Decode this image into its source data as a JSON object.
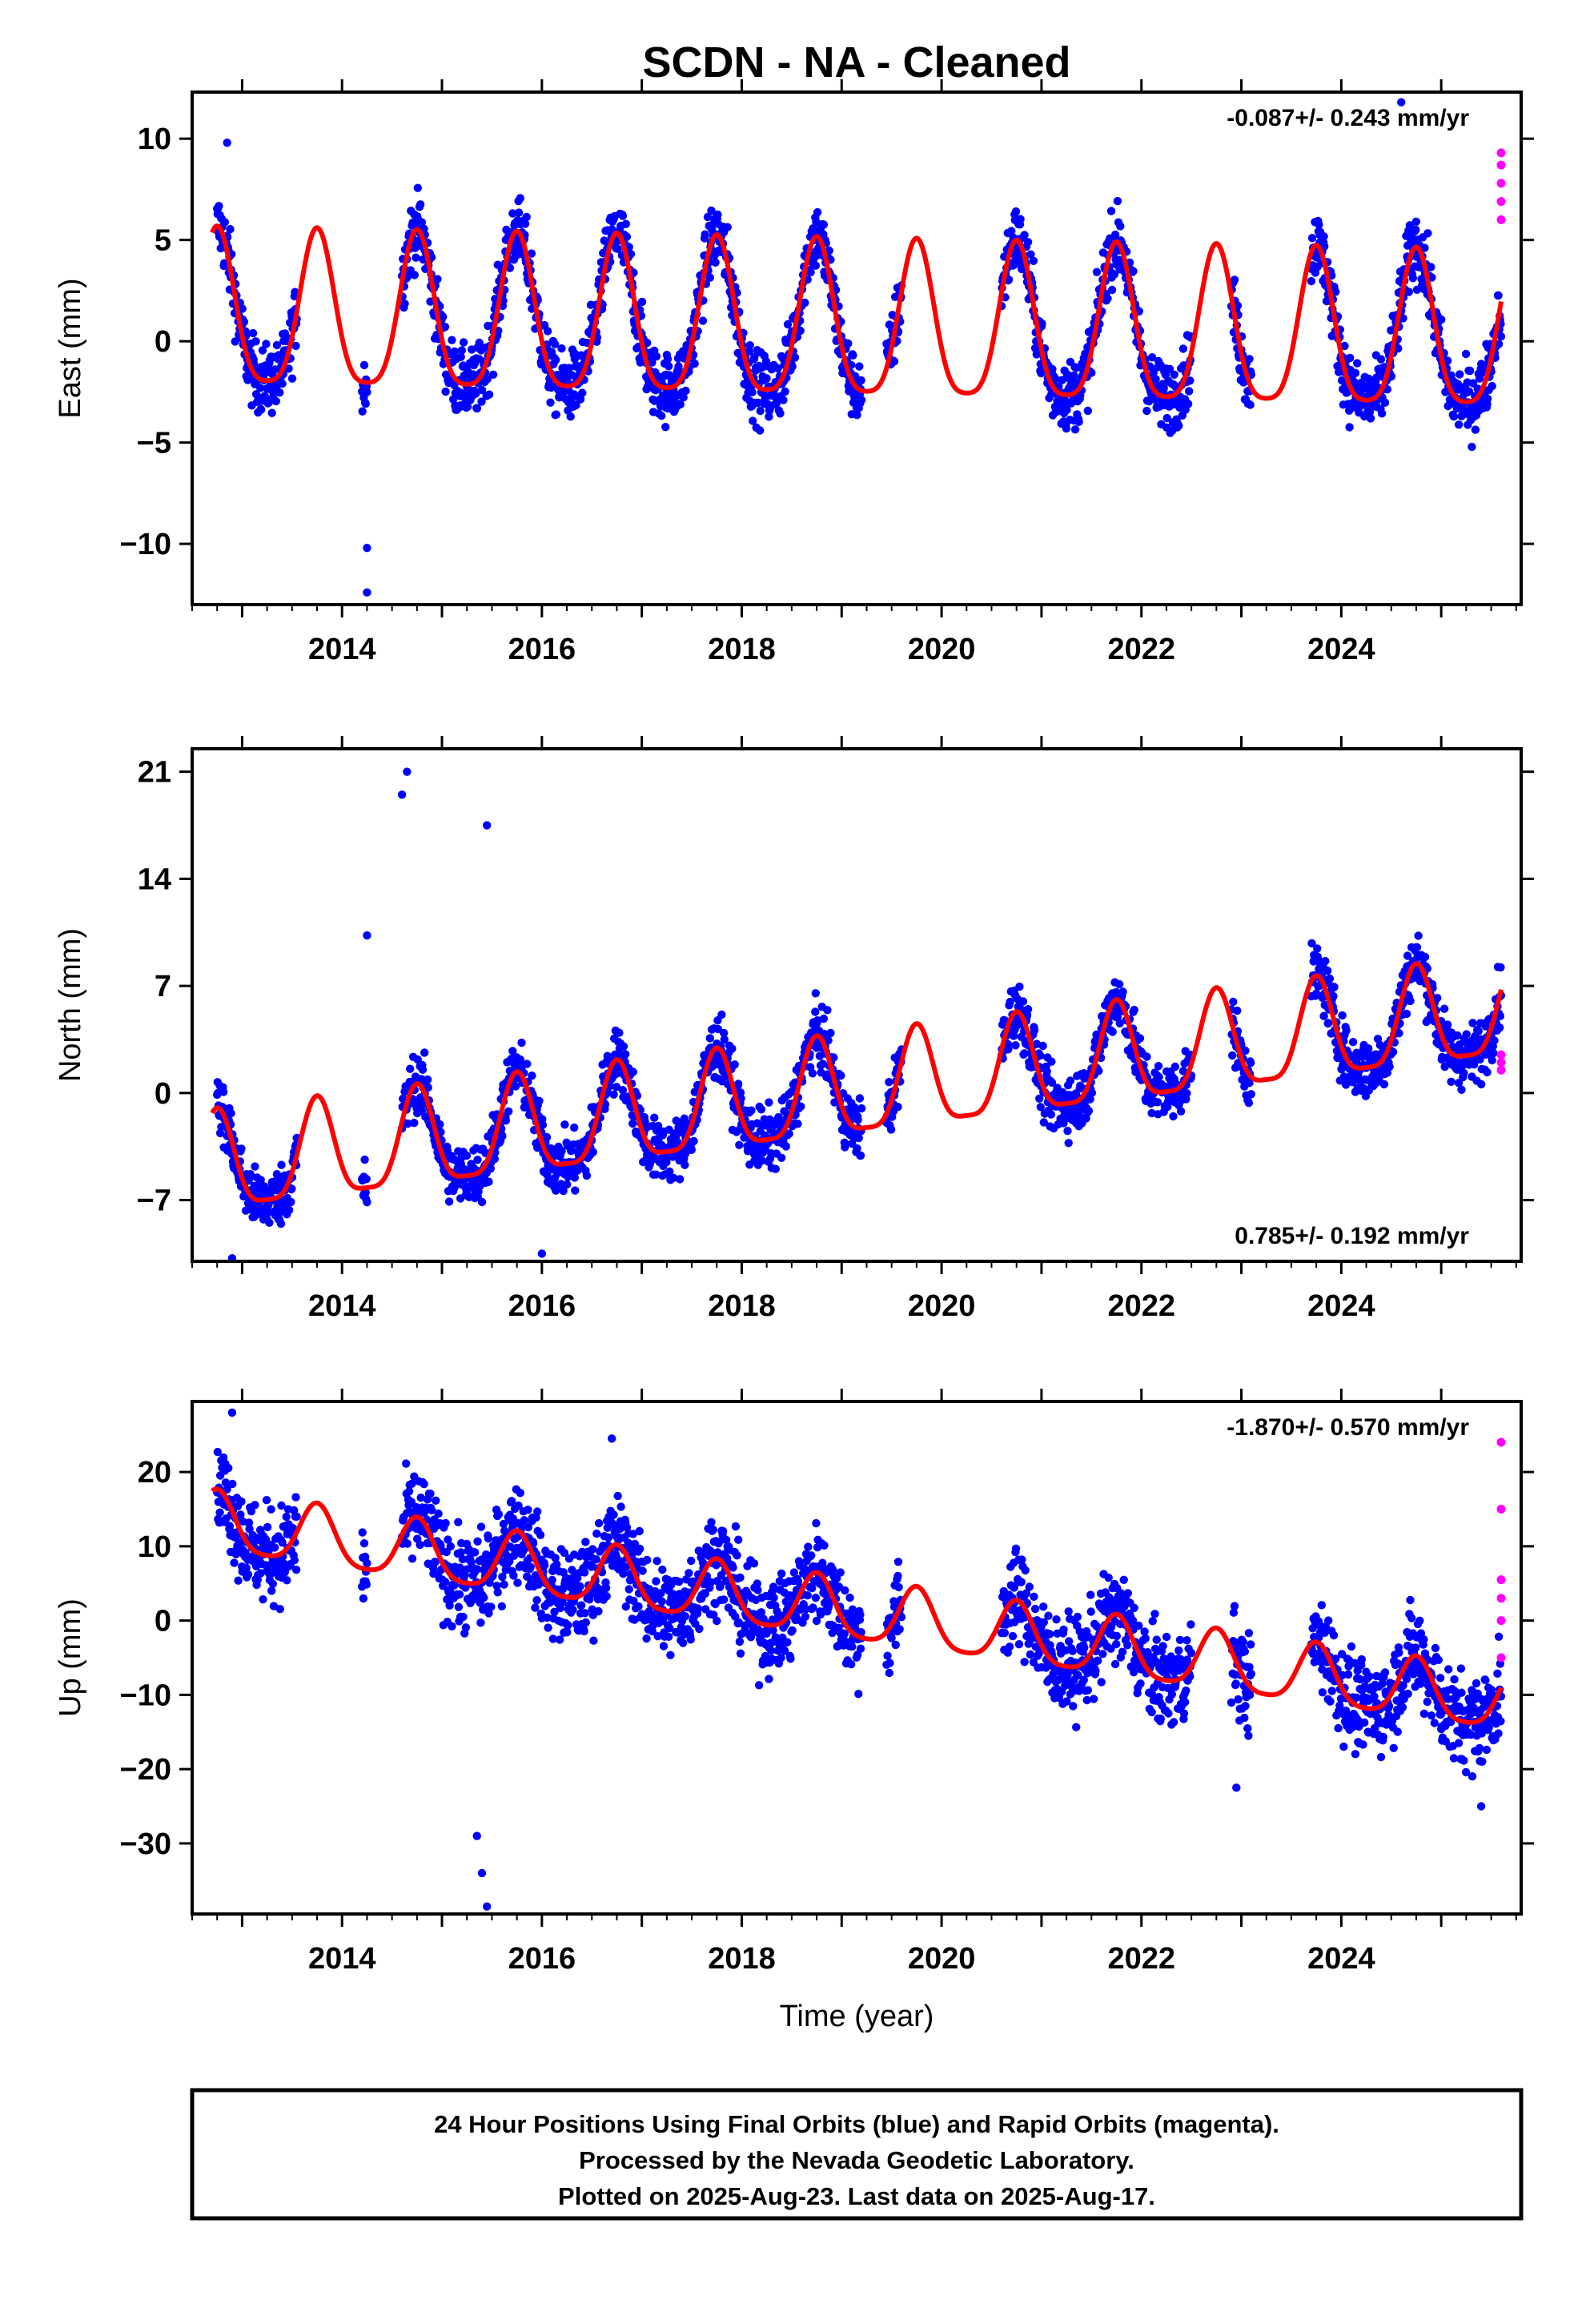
{
  "title": "SCDN  - NA - Cleaned",
  "chart_data": [
    {
      "type": "scatter",
      "ylabel": "East (mm)",
      "xlabel": "",
      "xlim": [
        2012.5,
        2025.8
      ],
      "ylim": [
        -13,
        12.3
      ],
      "xticks": [
        2014,
        2016,
        2018,
        2020,
        2022,
        2024
      ],
      "yticks": [
        -10,
        -5,
        0,
        5,
        10
      ],
      "rate_label": "-0.087+/- 0.243 mm/yr",
      "rate_position": "top-right",
      "series": [
        {
          "kind": "final-orbits",
          "color": "#0000ff",
          "segments": [
            [
              2012.75,
              2013.55
            ],
            [
              2014.2,
              2014.25
            ],
            [
              2014.6,
              2019.2
            ],
            [
              2019.45,
              2019.6
            ],
            [
              2020.6,
              2022.5
            ],
            [
              2022.9,
              2023.1
            ],
            [
              2023.7,
              2025.6
            ]
          ],
          "amplitude": 3.8,
          "offset": 0.9,
          "noise": 1.2,
          "outliers": [
            [
              2014.25,
              -12.4
            ],
            [
              2014.25,
              -10.2
            ],
            [
              2024.6,
              11.8
            ],
            [
              2012.85,
              9.8
            ]
          ]
        },
        {
          "kind": "rapid-orbits",
          "color": "#ff00ff",
          "points": [
            [
              2025.6,
              9.3
            ],
            [
              2025.6,
              8.7
            ],
            [
              2025.6,
              7.8
            ],
            [
              2025.6,
              6.9
            ],
            [
              2025.6,
              6.0
            ]
          ]
        },
        {
          "kind": "model-fit",
          "color": "#ff0000",
          "rate": -0.087,
          "amplitude": 3.8,
          "offset": 1.1,
          "start": 2012.7,
          "end": 2025.6
        }
      ]
    },
    {
      "type": "scatter",
      "ylabel": "North (mm)",
      "xlabel": "",
      "xlim": [
        2012.5,
        2025.8
      ],
      "ylim": [
        -11,
        22.5
      ],
      "xticks": [
        2014,
        2016,
        2018,
        2020,
        2022,
        2024
      ],
      "yticks": [
        -7,
        0,
        7,
        14,
        21
      ],
      "rate_label": "0.785+/- 0.192 mm/yr",
      "rate_position": "bottom-right",
      "series": [
        {
          "kind": "final-orbits",
          "color": "#0000ff",
          "segments": [
            [
              2012.75,
              2013.55
            ],
            [
              2014.2,
              2014.25
            ],
            [
              2014.6,
              2019.2
            ],
            [
              2019.45,
              2019.6
            ],
            [
              2020.6,
              2022.5
            ],
            [
              2022.9,
              2023.1
            ],
            [
              2023.7,
              2025.6
            ]
          ],
          "amplitude": 3.2,
          "offset": -5.0,
          "noise": 1.4,
          "outliers": [
            [
              2014.65,
              21.0
            ],
            [
              2014.6,
              19.5
            ],
            [
              2014.25,
              10.3
            ],
            [
              2015.45,
              17.5
            ],
            [
              2016.0,
              -10.5
            ],
            [
              2012.9,
              -10.8
            ]
          ]
        },
        {
          "kind": "rapid-orbits",
          "color": "#ff00ff",
          "points": [
            [
              2025.6,
              2.5
            ],
            [
              2025.6,
              2.0
            ],
            [
              2025.6,
              1.5
            ]
          ]
        },
        {
          "kind": "model-fit",
          "color": "#ff0000",
          "rate": 0.785,
          "amplitude": 3.2,
          "offset": -5.0,
          "start": 2012.7,
          "end": 2025.6
        }
      ]
    },
    {
      "type": "scatter",
      "ylabel": "Up (mm)",
      "xlabel": "Time (year)",
      "xlim": [
        2012.5,
        2025.8
      ],
      "ylim": [
        -39.5,
        29.5
      ],
      "xticks": [
        2014,
        2016,
        2018,
        2020,
        2022,
        2024
      ],
      "yticks": [
        -30,
        -20,
        -10,
        0,
        10,
        20
      ],
      "rate_label": "-1.870+/- 0.570 mm/yr",
      "rate_position": "top-right",
      "series": [
        {
          "kind": "final-orbits",
          "color": "#0000ff",
          "segments": [
            [
              2012.75,
              2013.55
            ],
            [
              2014.2,
              2014.25
            ],
            [
              2014.6,
              2019.2
            ],
            [
              2019.45,
              2019.6
            ],
            [
              2020.6,
              2022.5
            ],
            [
              2022.9,
              2023.1
            ],
            [
              2023.7,
              2025.6
            ]
          ],
          "amplitude": 4.0,
          "offset": 13.0,
          "noise": 4.5,
          "outliers": [
            [
              2015.45,
              -38.5
            ],
            [
              2015.4,
              -34.0
            ],
            [
              2015.35,
              -29.0
            ],
            [
              2012.9,
              28.0
            ],
            [
              2016.7,
              24.5
            ],
            [
              2022.95,
              -22.5
            ],
            [
              2025.4,
              -25.0
            ]
          ]
        },
        {
          "kind": "rapid-orbits",
          "color": "#ff00ff",
          "points": [
            [
              2025.6,
              24.0
            ],
            [
              2025.6,
              15.0
            ],
            [
              2025.6,
              5.5
            ],
            [
              2025.6,
              3.0
            ],
            [
              2025.6,
              0.0
            ],
            [
              2025.6,
              -5.0
            ]
          ]
        },
        {
          "kind": "model-fit",
          "color": "#ff0000",
          "rate": -1.87,
          "amplitude": 4.0,
          "offset": 13.0,
          "start": 2012.7,
          "end": 2025.6
        }
      ]
    }
  ],
  "footer": {
    "line1": "24 Hour Positions Using Final Orbits (blue) and Rapid Orbits (magenta).",
    "line2": "Processed by the Nevada Geodetic Laboratory.",
    "line3": "Plotted on 2025-Aug-23. Last data on 2025-Aug-17."
  }
}
